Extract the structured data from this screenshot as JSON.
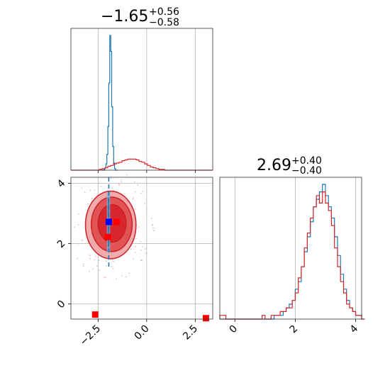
{
  "chart_data": {
    "type": "corner",
    "parameters": [
      {
        "index": 0,
        "title": {
          "value": "−1.65",
          "plus": "+0.56",
          "minus": "−0.58"
        },
        "range": [
          -3.9,
          3.4
        ],
        "ticks": [
          -2.5,
          0.0,
          2.5
        ],
        "tick_labels": [
          "−2.5",
          "0.0",
          "2.5"
        ],
        "quantiles_red": [
          -2.23,
          -1.65,
          -1.09
        ],
        "quantiles_blue": [
          -2.02,
          -1.95,
          -1.88
        ],
        "hist_red": {
          "bin_start": -3.9,
          "bin_width": 0.146,
          "counts": [
            0,
            0,
            0,
            0,
            0,
            0,
            0,
            0,
            0,
            0,
            1,
            2,
            3,
            5,
            6,
            8,
            9,
            10,
            12,
            13,
            14,
            14,
            14,
            13,
            11,
            10,
            8,
            6,
            4,
            3,
            2,
            1,
            1,
            0,
            0,
            0,
            0,
            0,
            0,
            0,
            0,
            0,
            0,
            0,
            0,
            0,
            0,
            0,
            0,
            0
          ]
        },
        "hist_blue": {
          "bin_start": -2.3,
          "bin_width": 0.05,
          "counts": [
            0,
            0,
            1,
            3,
            8,
            20,
            55,
            110,
            170,
            150,
            80,
            30,
            9,
            2,
            0,
            0
          ]
        }
      },
      {
        "index": 1,
        "title": {
          "value": "2.69",
          "plus": "+0.40",
          "minus": "−0.40"
        },
        "range": [
          -0.5,
          4.2
        ],
        "ticks": [
          0,
          2,
          4
        ],
        "tick_labels": [
          "0",
          "2",
          "4"
        ],
        "quantiles_red": [
          2.29,
          2.69,
          3.09
        ],
        "quantiles_blue": [
          2.27,
          2.69,
          3.07
        ],
        "hist_red": {
          "bin_start": -0.5,
          "bin_width": 0.1,
          "counts": [
            1,
            1,
            0,
            0,
            0,
            0,
            0,
            0,
            0,
            0,
            0,
            0,
            0,
            0,
            1,
            0,
            0,
            1,
            1,
            1,
            2,
            2,
            3,
            3,
            5,
            7,
            11,
            14,
            19,
            23,
            27,
            30,
            33,
            31,
            34,
            31,
            29,
            25,
            19,
            14,
            10,
            7,
            4,
            3,
            2,
            1,
            1,
            0
          ]
        },
        "hist_blue": {
          "bin_start": -0.5,
          "bin_width": 0.1,
          "counts": [
            0,
            0,
            0,
            0,
            0,
            0,
            0,
            0,
            0,
            0,
            0,
            0,
            0,
            0,
            0,
            0,
            0,
            0,
            1,
            1,
            1,
            2,
            3,
            4,
            5,
            8,
            10,
            14,
            18,
            22,
            26,
            30,
            32,
            34,
            36,
            33,
            30,
            27,
            22,
            17,
            12,
            8,
            5,
            3,
            2,
            1,
            1,
            0
          ]
        }
      }
    ],
    "contours_red": [
      {
        "level": "outer",
        "center": [
          -1.85,
          2.62
        ],
        "rx": 1.3,
        "ry": 1.12
      },
      {
        "level": "middle",
        "center": [
          -1.8,
          2.64
        ],
        "rx": 1.05,
        "ry": 0.9
      },
      {
        "level": "inner",
        "center": [
          -1.78,
          2.67
        ],
        "rx": 0.72,
        "ry": 0.62
      }
    ],
    "blue_samples": {
      "x_range": [
        -2.05,
        -1.88
      ],
      "y_range": [
        1.7,
        3.7
      ]
    },
    "markers": [
      {
        "color": "blue",
        "x": -1.95,
        "y": 2.72
      },
      {
        "color": "red",
        "x": -1.55,
        "y": 2.72
      },
      {
        "color": "red",
        "x": -2.0,
        "y": 2.22
      },
      {
        "color": "red",
        "x": -2.65,
        "y": -0.35
      },
      {
        "color": "red",
        "x": 3.05,
        "y": -0.47
      }
    ]
  },
  "colors": {
    "red": "#d62728",
    "blue": "#1f77b4",
    "grid": "#b0b0b0"
  }
}
